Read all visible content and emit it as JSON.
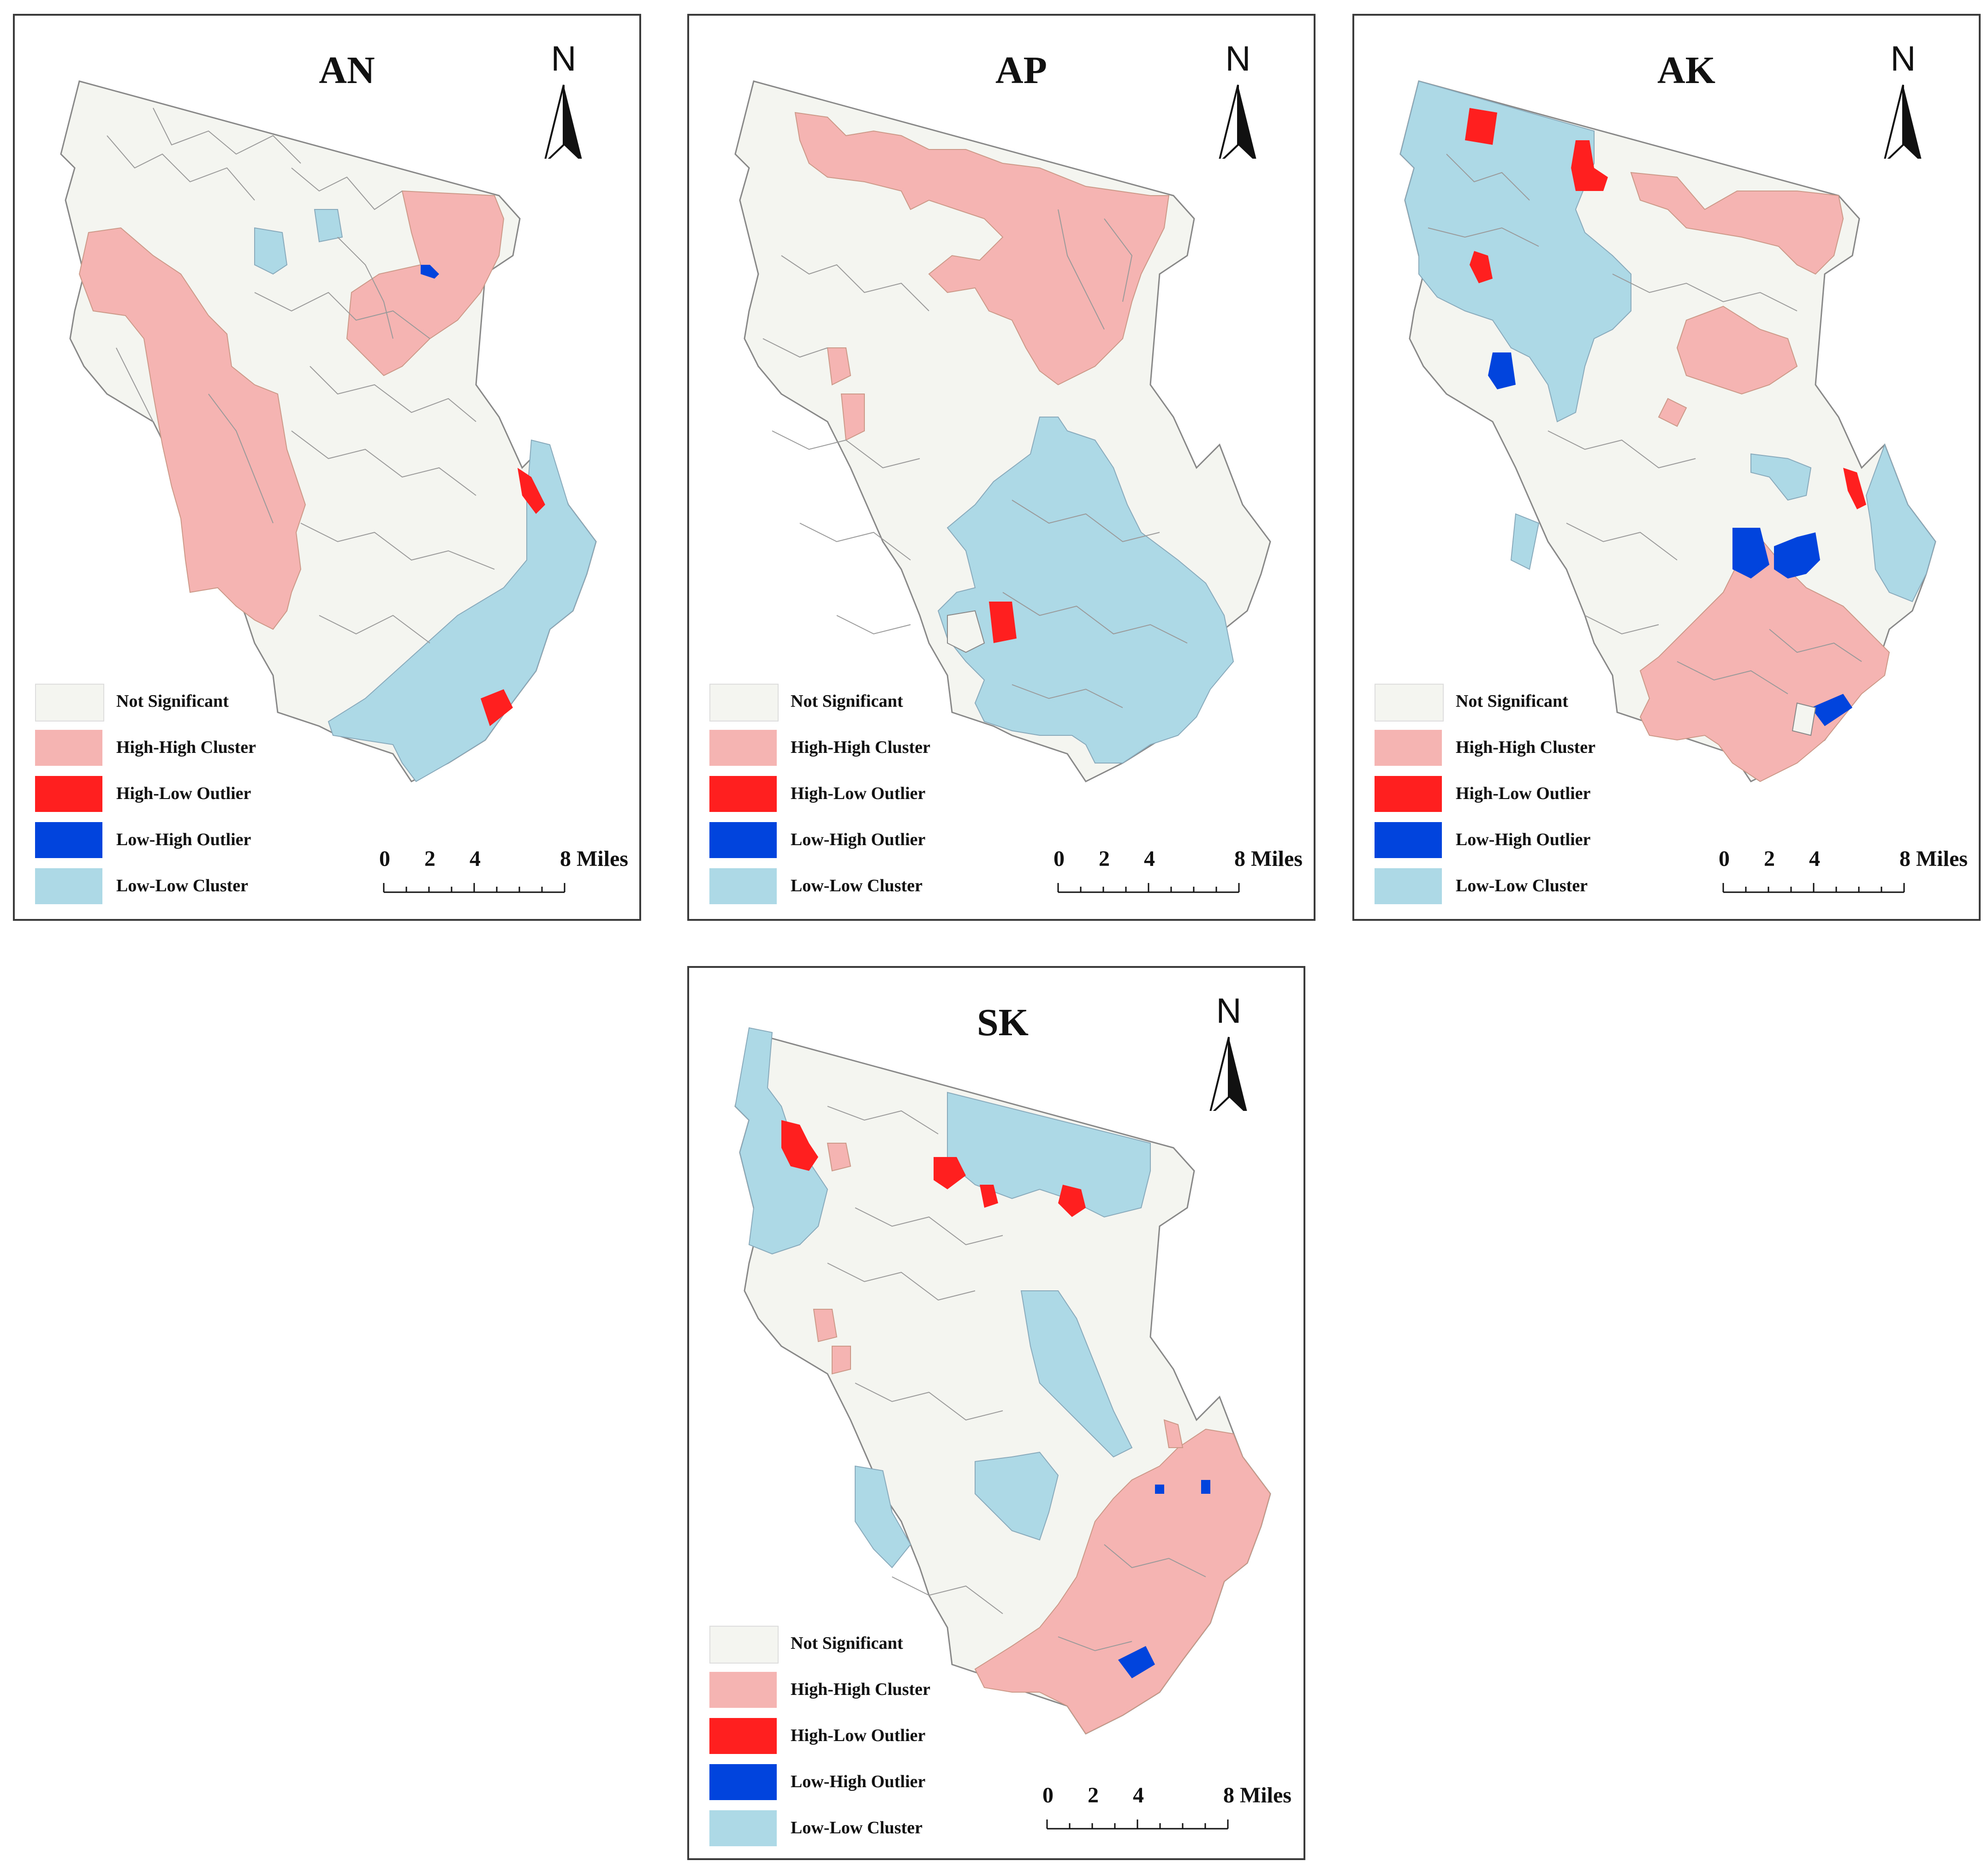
{
  "figure": {
    "panels": [
      {
        "id": "AN",
        "title": "AN"
      },
      {
        "id": "AP",
        "title": "AP"
      },
      {
        "id": "AK",
        "title": "AK"
      },
      {
        "id": "SK",
        "title": "SK"
      }
    ]
  },
  "north_label": "N",
  "legend": {
    "items": [
      {
        "key": "ns",
        "label": "Not Significant",
        "color": "#f4f4f0"
      },
      {
        "key": "hh",
        "label": "High-High Cluster",
        "color": "#f5b3b1"
      },
      {
        "key": "hl",
        "label": "High-Low Outlier",
        "color": "#ff1f1f"
      },
      {
        "key": "lh",
        "label": "Low-High Outlier",
        "color": "#0044dd"
      },
      {
        "key": "ll",
        "label": "Low-Low Cluster",
        "color": "#add8e6"
      }
    ]
  },
  "scale": {
    "ticks": [
      "0",
      "2",
      "4",
      "8 Miles"
    ]
  },
  "colors": {
    "boundary": "#9a9a9a",
    "outline": "#888888"
  }
}
